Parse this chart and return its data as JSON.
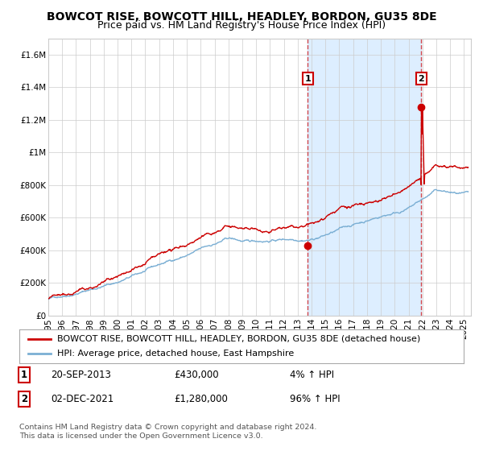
{
  "title": "BOWCOT RISE, BOWCOTT HILL, HEADLEY, BORDON, GU35 8DE",
  "subtitle": "Price paid vs. HM Land Registry's House Price Index (HPI)",
  "ylim": [
    0,
    1700000
  ],
  "xlim_start": 1995.0,
  "xlim_end": 2025.5,
  "yticks": [
    0,
    200000,
    400000,
    600000,
    800000,
    1000000,
    1200000,
    1400000,
    1600000
  ],
  "ytick_labels": [
    "£0",
    "£200K",
    "£400K",
    "£600K",
    "£800K",
    "£1M",
    "£1.2M",
    "£1.4M",
    "£1.6M"
  ],
  "xticks": [
    1995,
    1996,
    1997,
    1998,
    1999,
    2000,
    2001,
    2002,
    2003,
    2004,
    2005,
    2006,
    2007,
    2008,
    2009,
    2010,
    2011,
    2012,
    2013,
    2014,
    2015,
    2016,
    2017,
    2018,
    2019,
    2020,
    2021,
    2022,
    2023,
    2024,
    2025
  ],
  "hpi_color": "#7bafd4",
  "price_color": "#cc0000",
  "shaded_region_color": "#ddeeff",
  "grid_color": "#cccccc",
  "background_color": "#ffffff",
  "point1_x": 2013.72,
  "point1_y": 430000,
  "point2_x": 2021.92,
  "point2_y": 1280000,
  "point1_label": "1",
  "point2_label": "2",
  "legend_line1": "BOWCOT RISE, BOWCOTT HILL, HEADLEY, BORDON, GU35 8DE (detached house)",
  "legend_line2": "HPI: Average price, detached house, East Hampshire",
  "annotation1_date": "20-SEP-2013",
  "annotation1_price": "£430,000",
  "annotation1_hpi": "4% ↑ HPI",
  "annotation2_date": "02-DEC-2021",
  "annotation2_price": "£1,280,000",
  "annotation2_hpi": "96% ↑ HPI",
  "footnote": "Contains HM Land Registry data © Crown copyright and database right 2024.\nThis data is licensed under the Open Government Licence v3.0.",
  "title_fontsize": 10,
  "subtitle_fontsize": 9,
  "tick_fontsize": 7.5,
  "legend_fontsize": 8,
  "annotation_fontsize": 8.5
}
